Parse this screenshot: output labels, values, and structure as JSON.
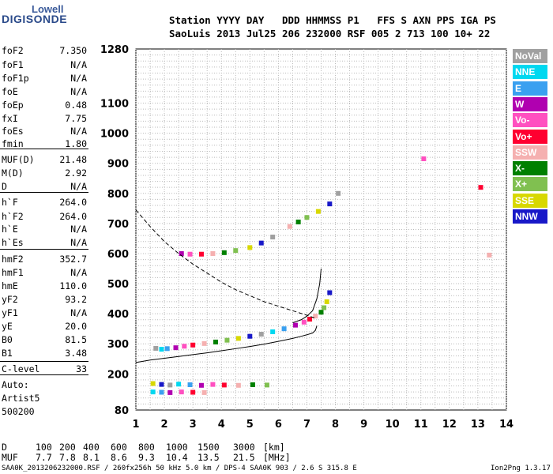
{
  "logo": {
    "line1": "Lowell",
    "line2": "DIGISONDE"
  },
  "header": {
    "line1": "Station YYYY DAY   DDD HHMMSS P1   FFS S AXN PPS IGA PS",
    "line2": "SaoLuis 2013 Jul25 206 232000 RSF 005 2 713 100 10+ 22"
  },
  "params": [
    {
      "name": "foF2",
      "value": "7.350"
    },
    {
      "name": "foF1",
      "value": "N/A"
    },
    {
      "name": "foF1p",
      "value": "N/A"
    },
    {
      "name": "foE",
      "value": "N/A"
    },
    {
      "name": "foEp",
      "value": "0.48"
    },
    {
      "name": "fxI",
      "value": "7.75"
    },
    {
      "name": "foEs",
      "value": "N/A"
    },
    {
      "name": "fmin",
      "value": "1.80"
    },
    {
      "name": "MUF(D)",
      "value": "21.48"
    },
    {
      "name": "M(D)",
      "value": "2.92"
    },
    {
      "name": "D",
      "value": "N/A"
    },
    {
      "name": "h`F",
      "value": "264.0"
    },
    {
      "name": "h`F2",
      "value": "264.0"
    },
    {
      "name": "h`E",
      "value": "N/A"
    },
    {
      "name": "h`Es",
      "value": "N/A"
    },
    {
      "name": "hmF2",
      "value": "352.7"
    },
    {
      "name": "hmF1",
      "value": "N/A"
    },
    {
      "name": "hmE",
      "value": "110.0"
    },
    {
      "name": "yF2",
      "value": "93.2"
    },
    {
      "name": "yF1",
      "value": "N/A"
    },
    {
      "name": "yE",
      "value": "20.0"
    },
    {
      "name": "B0",
      "value": "81.5"
    },
    {
      "name": "B1",
      "value": "3.48"
    },
    {
      "name": "C-level",
      "value": "33"
    }
  ],
  "notes": {
    "auto": "Auto:",
    "artist": "Artist5",
    "version": "500200"
  },
  "legend": [
    {
      "label": "NoVal",
      "color": "#a0a0a0"
    },
    {
      "label": "NNE",
      "color": "#00d8f0"
    },
    {
      "label": "E",
      "color": "#3aa0f0"
    },
    {
      "label": "W",
      "color": "#b000b0"
    },
    {
      "label": "Vo-",
      "color": "#ff50c0"
    },
    {
      "label": "Vo+",
      "color": "#ff0030"
    },
    {
      "label": "SSW",
      "color": "#f5b0b0"
    },
    {
      "label": "X-",
      "color": "#008000"
    },
    {
      "label": "X+",
      "color": "#80c050"
    },
    {
      "label": "SSE",
      "color": "#d8d800"
    },
    {
      "label": "NNW",
      "color": "#1818c8"
    }
  ],
  "mufTable": {
    "dLabel": "D",
    "distances": [
      "100",
      "200",
      "400",
      "600",
      "800",
      "1000",
      "1500",
      "3000"
    ],
    "distUnit": "[km]",
    "mufLabel": "MUF",
    "mufs": [
      "7.7",
      "7.8",
      "8.1",
      "8.6",
      "9.3",
      "10.4",
      "13.5",
      "21.5"
    ],
    "mufUnit": "[MHz]"
  },
  "footer": {
    "left": "SAA0K_2013206232000.RSF / 260fx256h 50 kHz 5.0 km / DPS-4 SAA0K 903 / 2.6 S 315.8 E",
    "right": "Ion2Png 1.3.17"
  },
  "chart_data": {
    "type": "scatter",
    "title": "",
    "xlabel": "",
    "ylabel": "",
    "xlim": [
      1,
      14
    ],
    "ylim": [
      80,
      1280
    ],
    "xticks": [
      "1",
      "2",
      "3",
      "4",
      "5",
      "6",
      "7",
      "8",
      "9",
      "10",
      "11",
      "12",
      "13",
      "14"
    ],
    "yticks": [
      "80",
      "200",
      "300",
      "400",
      "500",
      "600",
      "700",
      "800",
      "900",
      "1000",
      "1100",
      "1280"
    ],
    "grid": "dotted",
    "legend_placement": "right",
    "series": [
      {
        "name": "Trace",
        "x": [
          1.7,
          1.9,
          2.1,
          2.4,
          2.7,
          3.0,
          3.4,
          3.8,
          4.2,
          4.6,
          5.0,
          5.4,
          5.8,
          6.2,
          6.6,
          6.9,
          7.1,
          7.3,
          7.5,
          7.6,
          7.7,
          7.8
        ],
        "y": [
          285,
          282,
          284,
          287,
          292,
          296,
          301,
          306,
          312,
          318,
          325,
          332,
          340,
          350,
          362,
          372,
          382,
          392,
          405,
          420,
          440,
          470
        ]
      },
      {
        "name": "Echo band 600",
        "x": [
          2.6,
          2.9,
          3.3,
          3.7,
          4.1,
          4.5,
          5.0,
          5.4,
          5.8
        ],
        "y": [
          600,
          598,
          598,
          600,
          603,
          610,
          620,
          635,
          655
        ]
      },
      {
        "name": "Echo band 800",
        "x": [
          6.4,
          6.7,
          7.0,
          7.4,
          7.8,
          8.1
        ],
        "y": [
          690,
          705,
          720,
          740,
          765,
          800
        ]
      },
      {
        "name": "Low echoes",
        "x": [
          1.6,
          1.9,
          2.2,
          2.5,
          2.9,
          3.3,
          3.7,
          4.1,
          4.6,
          5.1,
          5.6
        ],
        "y": [
          168,
          165,
          163,
          166,
          164,
          162,
          165,
          163,
          162,
          164,
          163
        ]
      },
      {
        "name": "Bottom echoes",
        "x": [
          1.6,
          1.9,
          2.2,
          2.6,
          3.0,
          3.4
        ],
        "y": [
          140,
          139,
          138,
          140,
          139,
          138
        ]
      },
      {
        "name": "Isolated points",
        "x": [
          11.1,
          13.1,
          13.4
        ],
        "y": [
          915,
          820,
          595
        ]
      }
    ],
    "curves": [
      {
        "name": "Virtual height model",
        "x": [
          1.0,
          1.5,
          2.0,
          2.5,
          3.0,
          3.5,
          4.0,
          4.5,
          5.0,
          5.5,
          6.0,
          6.5,
          6.8,
          7.0,
          7.2,
          7.3,
          7.35
        ],
        "y": [
          238,
          246,
          252,
          258,
          264,
          270,
          277,
          284,
          291,
          299,
          308,
          318,
          325,
          330,
          336,
          345,
          360
        ]
      },
      {
        "name": "Profile high",
        "x": [
          6.5,
          6.8,
          7.0,
          7.2,
          7.35,
          7.45,
          7.5
        ],
        "y": [
          370,
          380,
          392,
          410,
          450,
          500,
          550
        ]
      },
      {
        "name": "MUF (dashed)",
        "x": [
          1.0,
          1.5,
          2.0,
          2.5,
          3.0,
          3.5,
          4.0,
          4.5,
          5.0,
          5.5,
          6.0,
          6.5,
          7.0,
          7.3
        ],
        "y": [
          745,
          690,
          640,
          600,
          565,
          535,
          505,
          480,
          460,
          440,
          425,
          410,
          395,
          385
        ]
      }
    ]
  }
}
